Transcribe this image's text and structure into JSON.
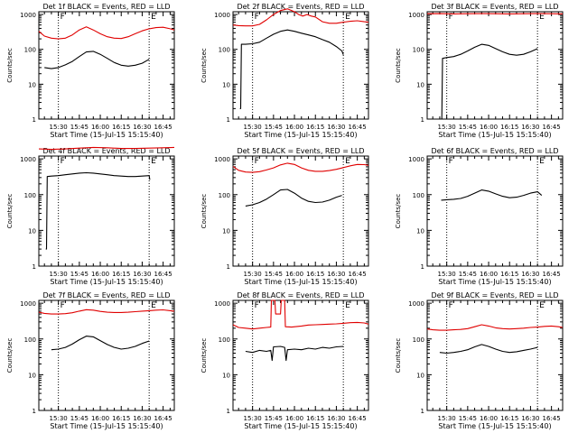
{
  "figure": {
    "background": "#ffffff",
    "axis_color": "#000000",
    "events_color": "#000000",
    "lld_color": "#e00000",
    "marker_color": "#000000",
    "marker_labels": [
      "F",
      "E"
    ]
  },
  "chart_data": [
    {
      "type": "line",
      "title": "Det 1f BLACK = Events, RED = LLD",
      "xlabel": "Start Time (15-Jul-15 15:15:40)",
      "ylabel": "Counts/sec",
      "yscale": "log",
      "ylim": [
        1,
        1200
      ],
      "xlim": [
        "15:16",
        "16:53"
      ],
      "y_ticks": [
        "1",
        "10",
        "100",
        "1000"
      ],
      "x_ticks": [
        "15:30",
        "15:45",
        "16:00",
        "16:15",
        "16:30",
        "16:45"
      ],
      "vertical_markers": [
        "15:30",
        "16:35"
      ],
      "grid": false,
      "series": [
        {
          "name": "LLD",
          "color": "#e00000",
          "x": [
            "15:16",
            "15:20",
            "15:25",
            "15:30",
            "15:35",
            "15:40",
            "15:45",
            "15:50",
            "15:55",
            "16:00",
            "16:05",
            "16:10",
            "16:15",
            "16:20",
            "16:25",
            "16:30",
            "16:35",
            "16:40",
            "16:45",
            "16:50",
            "16:53"
          ],
          "values": [
            330,
            240,
            210,
            200,
            210,
            260,
            360,
            440,
            360,
            280,
            230,
            210,
            205,
            230,
            280,
            340,
            390,
            420,
            430,
            390,
            360
          ]
        },
        {
          "name": "Events",
          "color": "#000000",
          "x": [
            "15:20",
            "15:25",
            "15:30",
            "15:35",
            "15:40",
            "15:45",
            "15:50",
            "15:55",
            "16:00",
            "16:05",
            "16:10",
            "16:15",
            "16:20",
            "16:25",
            "16:30",
            "16:35"
          ],
          "values": [
            30,
            28,
            30,
            36,
            45,
            62,
            84,
            88,
            72,
            55,
            42,
            35,
            33,
            35,
            40,
            52
          ]
        }
      ]
    },
    {
      "type": "line",
      "title": "Det 2f BLACK = Events, RED = LLD",
      "xlabel": "Start Time (15-Jul-15 15:15:40)",
      "ylabel": "Counts/sec",
      "yscale": "log",
      "ylim": [
        1,
        1200
      ],
      "xlim": [
        "15:16",
        "16:53"
      ],
      "y_ticks": [
        "1",
        "10",
        "100",
        "1000"
      ],
      "x_ticks": [
        "15:30",
        "15:45",
        "16:00",
        "16:15",
        "16:30",
        "16:45"
      ],
      "vertical_markers": [
        "15:30",
        "16:35"
      ],
      "grid": false,
      "series": [
        {
          "name": "LLD",
          "color": "#e00000",
          "x": [
            "15:16",
            "15:20",
            "15:25",
            "15:30",
            "15:35",
            "15:40",
            "15:45",
            "15:50",
            "15:55",
            "16:00",
            "16:03",
            "16:06",
            "16:09",
            "16:12",
            "16:15",
            "16:20",
            "16:25",
            "16:30",
            "16:35",
            "16:40",
            "16:45",
            "16:50",
            "16:53"
          ],
          "values": [
            500,
            480,
            470,
            470,
            520,
            700,
            1000,
            1300,
            1450,
            1200,
            1000,
            900,
            1000,
            900,
            850,
            620,
            560,
            560,
            600,
            640,
            660,
            620,
            600
          ]
        },
        {
          "name": "Events",
          "color": "#000000",
          "x": [
            "15:21",
            "15:21.5",
            "15:22",
            "15:25",
            "15:30",
            "15:35",
            "15:40",
            "15:45",
            "15:50",
            "15:55",
            "16:00",
            "16:05",
            "16:10",
            "16:15",
            "16:20",
            "16:25",
            "16:30",
            "16:34",
            "16:35"
          ],
          "values": [
            2,
            2,
            140,
            140,
            145,
            160,
            210,
            270,
            330,
            360,
            330,
            290,
            260,
            230,
            190,
            160,
            120,
            90,
            70
          ]
        }
      ]
    },
    {
      "type": "line",
      "title": "Det 3f BLACK = Events, RED = LLD",
      "xlabel": "Start Time (15-Jul-15 15:15:40)",
      "ylabel": "Counts/sec",
      "yscale": "log",
      "ylim": [
        1,
        1200
      ],
      "xlim": [
        "15:16",
        "16:53"
      ],
      "y_ticks": [
        "1",
        "10",
        "100",
        "1000"
      ],
      "x_ticks": [
        "15:30",
        "15:45",
        "16:00",
        "16:15",
        "16:30",
        "16:45"
      ],
      "vertical_markers": [
        "15:30",
        "16:35"
      ],
      "grid": false,
      "series": [
        {
          "name": "LLD",
          "color": "#e00000",
          "x": [
            "15:16",
            "15:25",
            "15:35",
            "15:45",
            "15:55",
            "16:05",
            "16:15",
            "16:25",
            "16:35",
            "16:45",
            "16:53"
          ],
          "values": [
            1050,
            1060,
            1040,
            1050,
            1060,
            1050,
            1040,
            1050,
            1060,
            1050,
            1040
          ]
        },
        {
          "name": "Events",
          "color": "#000000",
          "x": [
            "15:26",
            "15:26.5",
            "15:27",
            "15:30",
            "15:35",
            "15:40",
            "15:45",
            "15:50",
            "15:55",
            "16:00",
            "16:05",
            "16:10",
            "16:15",
            "16:20",
            "16:25",
            "16:30",
            "16:35"
          ],
          "values": [
            1,
            1,
            55,
            58,
            62,
            72,
            90,
            115,
            140,
            130,
            105,
            85,
            72,
            68,
            72,
            85,
            105
          ]
        }
      ]
    },
    {
      "type": "line",
      "title": "Det 4f BLACK = Events, RED = LLD",
      "xlabel": "Start Time (15-Jul-15 15:15:40)",
      "ylabel": "Counts/sec",
      "yscale": "log",
      "ylim": [
        1,
        1200
      ],
      "xlim": [
        "15:16",
        "16:53"
      ],
      "y_ticks": [
        "1",
        "10",
        "100",
        "1000"
      ],
      "x_ticks": [
        "15:30",
        "15:45",
        "16:00",
        "16:15",
        "16:30",
        "16:45"
      ],
      "vertical_markers": [
        "15:30",
        "16:35"
      ],
      "grid": false,
      "series": [
        {
          "name": "LLD",
          "color": "#e00000",
          "x": [
            "15:16",
            "15:25",
            "15:35",
            "15:45",
            "15:55",
            "16:05",
            "16:15",
            "16:25",
            "16:35",
            "16:45",
            "16:53"
          ],
          "values": [
            1900,
            1850,
            1900,
            2000,
            2100,
            2050,
            1950,
            1950,
            2000,
            2050,
            2100
          ]
        },
        {
          "name": "Events",
          "color": "#000000",
          "x": [
            "15:21",
            "15:21.5",
            "15:22",
            "15:25",
            "15:30",
            "15:35",
            "15:40",
            "15:45",
            "15:50",
            "15:55",
            "16:00",
            "16:05",
            "16:10",
            "16:15",
            "16:20",
            "16:25",
            "16:30",
            "16:35",
            "16:35.5"
          ],
          "values": [
            3,
            3,
            320,
            330,
            340,
            360,
            380,
            400,
            410,
            400,
            380,
            360,
            340,
            330,
            320,
            320,
            330,
            340,
            260
          ]
        }
      ]
    },
    {
      "type": "line",
      "title": "Det 5f BLACK = Events, RED = LLD",
      "xlabel": "Start Time (15-Jul-15 15:15:40)",
      "ylabel": "Counts/sec",
      "yscale": "log",
      "ylim": [
        1,
        1200
      ],
      "xlim": [
        "15:16",
        "16:53"
      ],
      "y_ticks": [
        "1",
        "10",
        "100",
        "1000"
      ],
      "x_ticks": [
        "15:30",
        "15:45",
        "16:00",
        "16:15",
        "16:30",
        "16:45"
      ],
      "vertical_markers": [
        "15:30",
        "16:35"
      ],
      "grid": false,
      "series": [
        {
          "name": "LLD",
          "color": "#e00000",
          "x": [
            "15:16",
            "15:20",
            "15:25",
            "15:30",
            "15:35",
            "15:40",
            "15:45",
            "15:50",
            "15:55",
            "16:00",
            "16:05",
            "16:10",
            "16:15",
            "16:20",
            "16:25",
            "16:30",
            "16:35",
            "16:40",
            "16:45",
            "16:50",
            "16:53"
          ],
          "values": [
            620,
            480,
            430,
            420,
            440,
            490,
            560,
            680,
            760,
            700,
            560,
            480,
            450,
            450,
            470,
            510,
            570,
            640,
            700,
            690,
            660
          ]
        },
        {
          "name": "Events",
          "color": "#000000",
          "x": [
            "15:25",
            "15:30",
            "15:35",
            "15:40",
            "15:45",
            "15:50",
            "15:55",
            "16:00",
            "16:05",
            "16:10",
            "16:15",
            "16:20",
            "16:25",
            "16:30",
            "16:34"
          ],
          "values": [
            48,
            52,
            60,
            75,
            100,
            135,
            140,
            110,
            80,
            65,
            60,
            62,
            70,
            85,
            95
          ]
        }
      ]
    },
    {
      "type": "line",
      "title": "Det 6f BLACK = Events, RED = LLD",
      "xlabel": "Start Time (15-Jul-15 15:15:40)",
      "ylabel": "Counts/sec",
      "yscale": "log",
      "ylim": [
        1,
        1200
      ],
      "xlim": [
        "15:16",
        "16:53"
      ],
      "y_ticks": [
        "1",
        "10",
        "100",
        "1000"
      ],
      "x_ticks": [
        "15:30",
        "15:45",
        "16:00",
        "16:15",
        "16:30",
        "16:45"
      ],
      "vertical_markers": [
        "15:30",
        "16:35"
      ],
      "grid": false,
      "series": [
        {
          "name": "Events",
          "color": "#000000",
          "x": [
            "15:26",
            "15:30",
            "15:35",
            "15:40",
            "15:45",
            "15:50",
            "15:55",
            "16:00",
            "16:05",
            "16:10",
            "16:15",
            "16:20",
            "16:25",
            "16:30",
            "16:35",
            "16:38"
          ],
          "values": [
            70,
            72,
            74,
            78,
            90,
            110,
            135,
            125,
            105,
            90,
            82,
            85,
            95,
            110,
            120,
            95
          ]
        }
      ]
    },
    {
      "type": "line",
      "title": "Det 7f BLACK = Events, RED = LLD",
      "xlabel": "Start Time (15-Jul-15 15:15:40)",
      "ylabel": "Counts/sec",
      "yscale": "log",
      "ylim": [
        1,
        1200
      ],
      "xlim": [
        "15:16",
        "16:53"
      ],
      "y_ticks": [
        "1",
        "10",
        "100",
        "1000"
      ],
      "x_ticks": [
        "15:30",
        "15:45",
        "16:00",
        "16:15",
        "16:30",
        "16:45"
      ],
      "vertical_markers": [
        "15:30",
        "16:35"
      ],
      "grid": false,
      "series": [
        {
          "name": "LLD",
          "color": "#e00000",
          "x": [
            "15:16",
            "15:20",
            "15:25",
            "15:30",
            "15:35",
            "15:40",
            "15:45",
            "15:50",
            "15:55",
            "16:00",
            "16:05",
            "16:10",
            "16:15",
            "16:20",
            "16:25",
            "16:30",
            "16:35",
            "16:40",
            "16:45",
            "16:50",
            "16:53"
          ],
          "values": [
            560,
            520,
            500,
            500,
            510,
            540,
            600,
            660,
            640,
            590,
            560,
            550,
            550,
            560,
            580,
            600,
            620,
            640,
            650,
            620,
            600
          ]
        },
        {
          "name": "Events",
          "color": "#000000",
          "x": [
            "15:25",
            "15:30",
            "15:35",
            "15:40",
            "15:45",
            "15:50",
            "15:55",
            "16:00",
            "16:05",
            "16:10",
            "16:15",
            "16:20",
            "16:25",
            "16:30",
            "16:35"
          ],
          "values": [
            50,
            52,
            58,
            72,
            95,
            120,
            115,
            90,
            70,
            58,
            52,
            55,
            62,
            75,
            88
          ]
        }
      ]
    },
    {
      "type": "line",
      "title": "Det 8f BLACK = Events, RED = LLD",
      "xlabel": "Start Time (15-Jul-15 15:15:40)",
      "ylabel": "Counts/sec",
      "yscale": "log",
      "ylim": [
        1,
        1200
      ],
      "xlim": [
        "15:16",
        "16:53"
      ],
      "y_ticks": [
        "1",
        "10",
        "100",
        "1000"
      ],
      "x_ticks": [
        "15:30",
        "15:45",
        "16:00",
        "16:15",
        "16:30",
        "16:45"
      ],
      "vertical_markers": [
        "15:30",
        "16:35"
      ],
      "grid": false,
      "series": [
        {
          "name": "LLD",
          "color": "#e00000",
          "x": [
            "15:16",
            "15:20",
            "15:25",
            "15:30",
            "15:35",
            "15:40",
            "15:43",
            "15:43.5",
            "15:46",
            "15:46.5",
            "15:50",
            "15:50.5",
            "15:53",
            "15:53.5",
            "15:58",
            "16:05",
            "16:10",
            "16:15",
            "16:20",
            "16:25",
            "16:30",
            "16:35",
            "16:40",
            "16:45",
            "16:50",
            "16:53"
          ],
          "values": [
            250,
            210,
            200,
            190,
            200,
            210,
            215,
            1200,
            1200,
            500,
            500,
            1200,
            1200,
            220,
            215,
            230,
            245,
            250,
            255,
            260,
            265,
            275,
            285,
            290,
            280,
            260
          ]
        },
        {
          "name": "Events",
          "color": "#000000",
          "x": [
            "15:25",
            "15:30",
            "15:35",
            "15:40",
            "15:43",
            "15:44",
            "15:45",
            "15:50",
            "15:53",
            "15:54",
            "15:55",
            "16:00",
            "16:05",
            "16:10",
            "16:15",
            "16:20",
            "16:25",
            "16:30",
            "16:35"
          ],
          "values": [
            45,
            42,
            48,
            45,
            48,
            25,
            60,
            62,
            58,
            25,
            50,
            52,
            50,
            55,
            52,
            58,
            55,
            60,
            62
          ]
        }
      ]
    },
    {
      "type": "line",
      "title": "Det 9f BLACK = Events, RED = LLD",
      "xlabel": "Start Time (15-Jul-15 15:15:40)",
      "ylabel": "Counts/sec",
      "yscale": "log",
      "ylim": [
        1,
        1200
      ],
      "xlim": [
        "15:16",
        "16:53"
      ],
      "y_ticks": [
        "1",
        "10",
        "100",
        "1000"
      ],
      "x_ticks": [
        "15:30",
        "15:45",
        "16:00",
        "16:15",
        "16:30",
        "16:45"
      ],
      "vertical_markers": [
        "15:30",
        "16:35"
      ],
      "grid": false,
      "series": [
        {
          "name": "LLD",
          "color": "#e00000",
          "x": [
            "15:16",
            "15:20",
            "15:25",
            "15:30",
            "15:35",
            "15:40",
            "15:45",
            "15:50",
            "15:55",
            "16:00",
            "16:05",
            "16:10",
            "16:15",
            "16:20",
            "16:25",
            "16:30",
            "16:35",
            "16:40",
            "16:45",
            "16:50",
            "16:53"
          ],
          "values": [
            190,
            180,
            175,
            175,
            180,
            185,
            195,
            220,
            250,
            230,
            205,
            195,
            190,
            195,
            200,
            210,
            215,
            225,
            230,
            220,
            210
          ]
        },
        {
          "name": "Events",
          "color": "#000000",
          "x": [
            "15:25",
            "15:30",
            "15:35",
            "15:40",
            "15:45",
            "15:50",
            "15:55",
            "16:00",
            "16:05",
            "16:10",
            "16:15",
            "16:20",
            "16:25",
            "16:30",
            "16:35"
          ],
          "values": [
            42,
            40,
            42,
            45,
            50,
            60,
            70,
            62,
            52,
            45,
            42,
            44,
            48,
            52,
            58
          ]
        }
      ]
    }
  ]
}
